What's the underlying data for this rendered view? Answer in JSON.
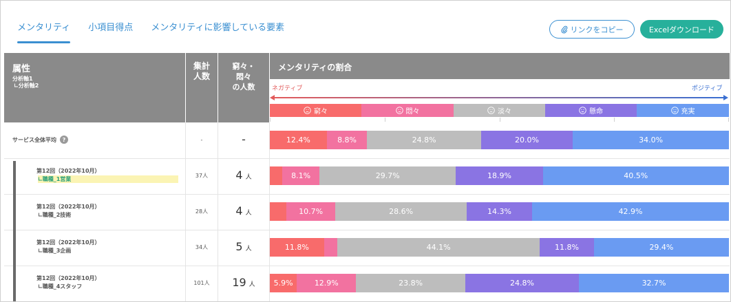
{
  "tabs": [
    {
      "label": "メンタリティ",
      "active": true
    },
    {
      "label": "小項目得点",
      "active": false
    },
    {
      "label": "メンタリティに影響している要素",
      "active": false
    }
  ],
  "buttons": {
    "copy_link": "リンクをコピー",
    "excel_download": "Excelダウンロード"
  },
  "table_header": {
    "attribute": "属性",
    "axis1": "分析軸1",
    "axis2": "∟分析軸2",
    "count": "集計\n人数",
    "distressed": "窮々・\n悶々\nの人数",
    "ratio": "メンタリティの割合"
  },
  "scale": {
    "negative": "ネガティブ",
    "positive": "ポジティブ"
  },
  "categories": [
    {
      "label": "窮々",
      "color": "#f86b6b",
      "icon": "frown-face-icon"
    },
    {
      "label": "悶々",
      "color": "#f272a0",
      "icon": "sad-face-icon"
    },
    {
      "label": "淡々",
      "color": "#bdbdbd",
      "icon": "neutral-face-icon"
    },
    {
      "label": "懸命",
      "color": "#8a74e3",
      "icon": "smile-face-icon"
    },
    {
      "label": "充実",
      "color": "#6a9bf2",
      "icon": "happy-face-icon"
    }
  ],
  "average_row": {
    "label": "サービス全体平均",
    "help_icon": "question-icon",
    "count": "-",
    "distressed": "-",
    "values": [
      12.4,
      8.8,
      24.8,
      20.0,
      34.0
    ],
    "labels": [
      "12.4%",
      "8.8%",
      "24.8%",
      "20.0%",
      "34.0%"
    ]
  },
  "rows": [
    {
      "title": "第12回（2022年10月）",
      "sub": "∟職種_1営業",
      "highlight": true,
      "count": "37人",
      "distressed": "4",
      "unit": "人",
      "values": [
        2.7,
        8.1,
        29.7,
        18.9,
        40.5
      ],
      "labels": [
        "",
        "8.1%",
        "29.7%",
        "18.9%",
        "40.5%"
      ]
    },
    {
      "title": "第12回（2022年10月）",
      "sub": "∟職種_2技術",
      "highlight": false,
      "count": "28人",
      "distressed": "4",
      "unit": "人",
      "values": [
        3.6,
        10.7,
        28.6,
        14.3,
        42.9
      ],
      "labels": [
        "",
        "10.7%",
        "28.6%",
        "14.3%",
        "42.9%"
      ]
    },
    {
      "title": "第12回（2022年10月）",
      "sub": "∟職種_3企画",
      "highlight": false,
      "count": "34人",
      "distressed": "5",
      "unit": "人",
      "values": [
        11.8,
        2.9,
        44.1,
        11.8,
        29.4
      ],
      "labels": [
        "11.8%",
        "",
        "44.1%",
        "11.8%",
        "29.4%"
      ]
    },
    {
      "title": "第12回（2022年10月）",
      "sub": "∟職種_4スタッフ",
      "highlight": false,
      "count": "101人",
      "distressed": "19",
      "unit": "人",
      "values": [
        5.9,
        12.9,
        23.8,
        24.8,
        32.7
      ],
      "labels": [
        "5.9%",
        "12.9%",
        "23.8%",
        "24.8%",
        "32.7%"
      ]
    }
  ]
}
